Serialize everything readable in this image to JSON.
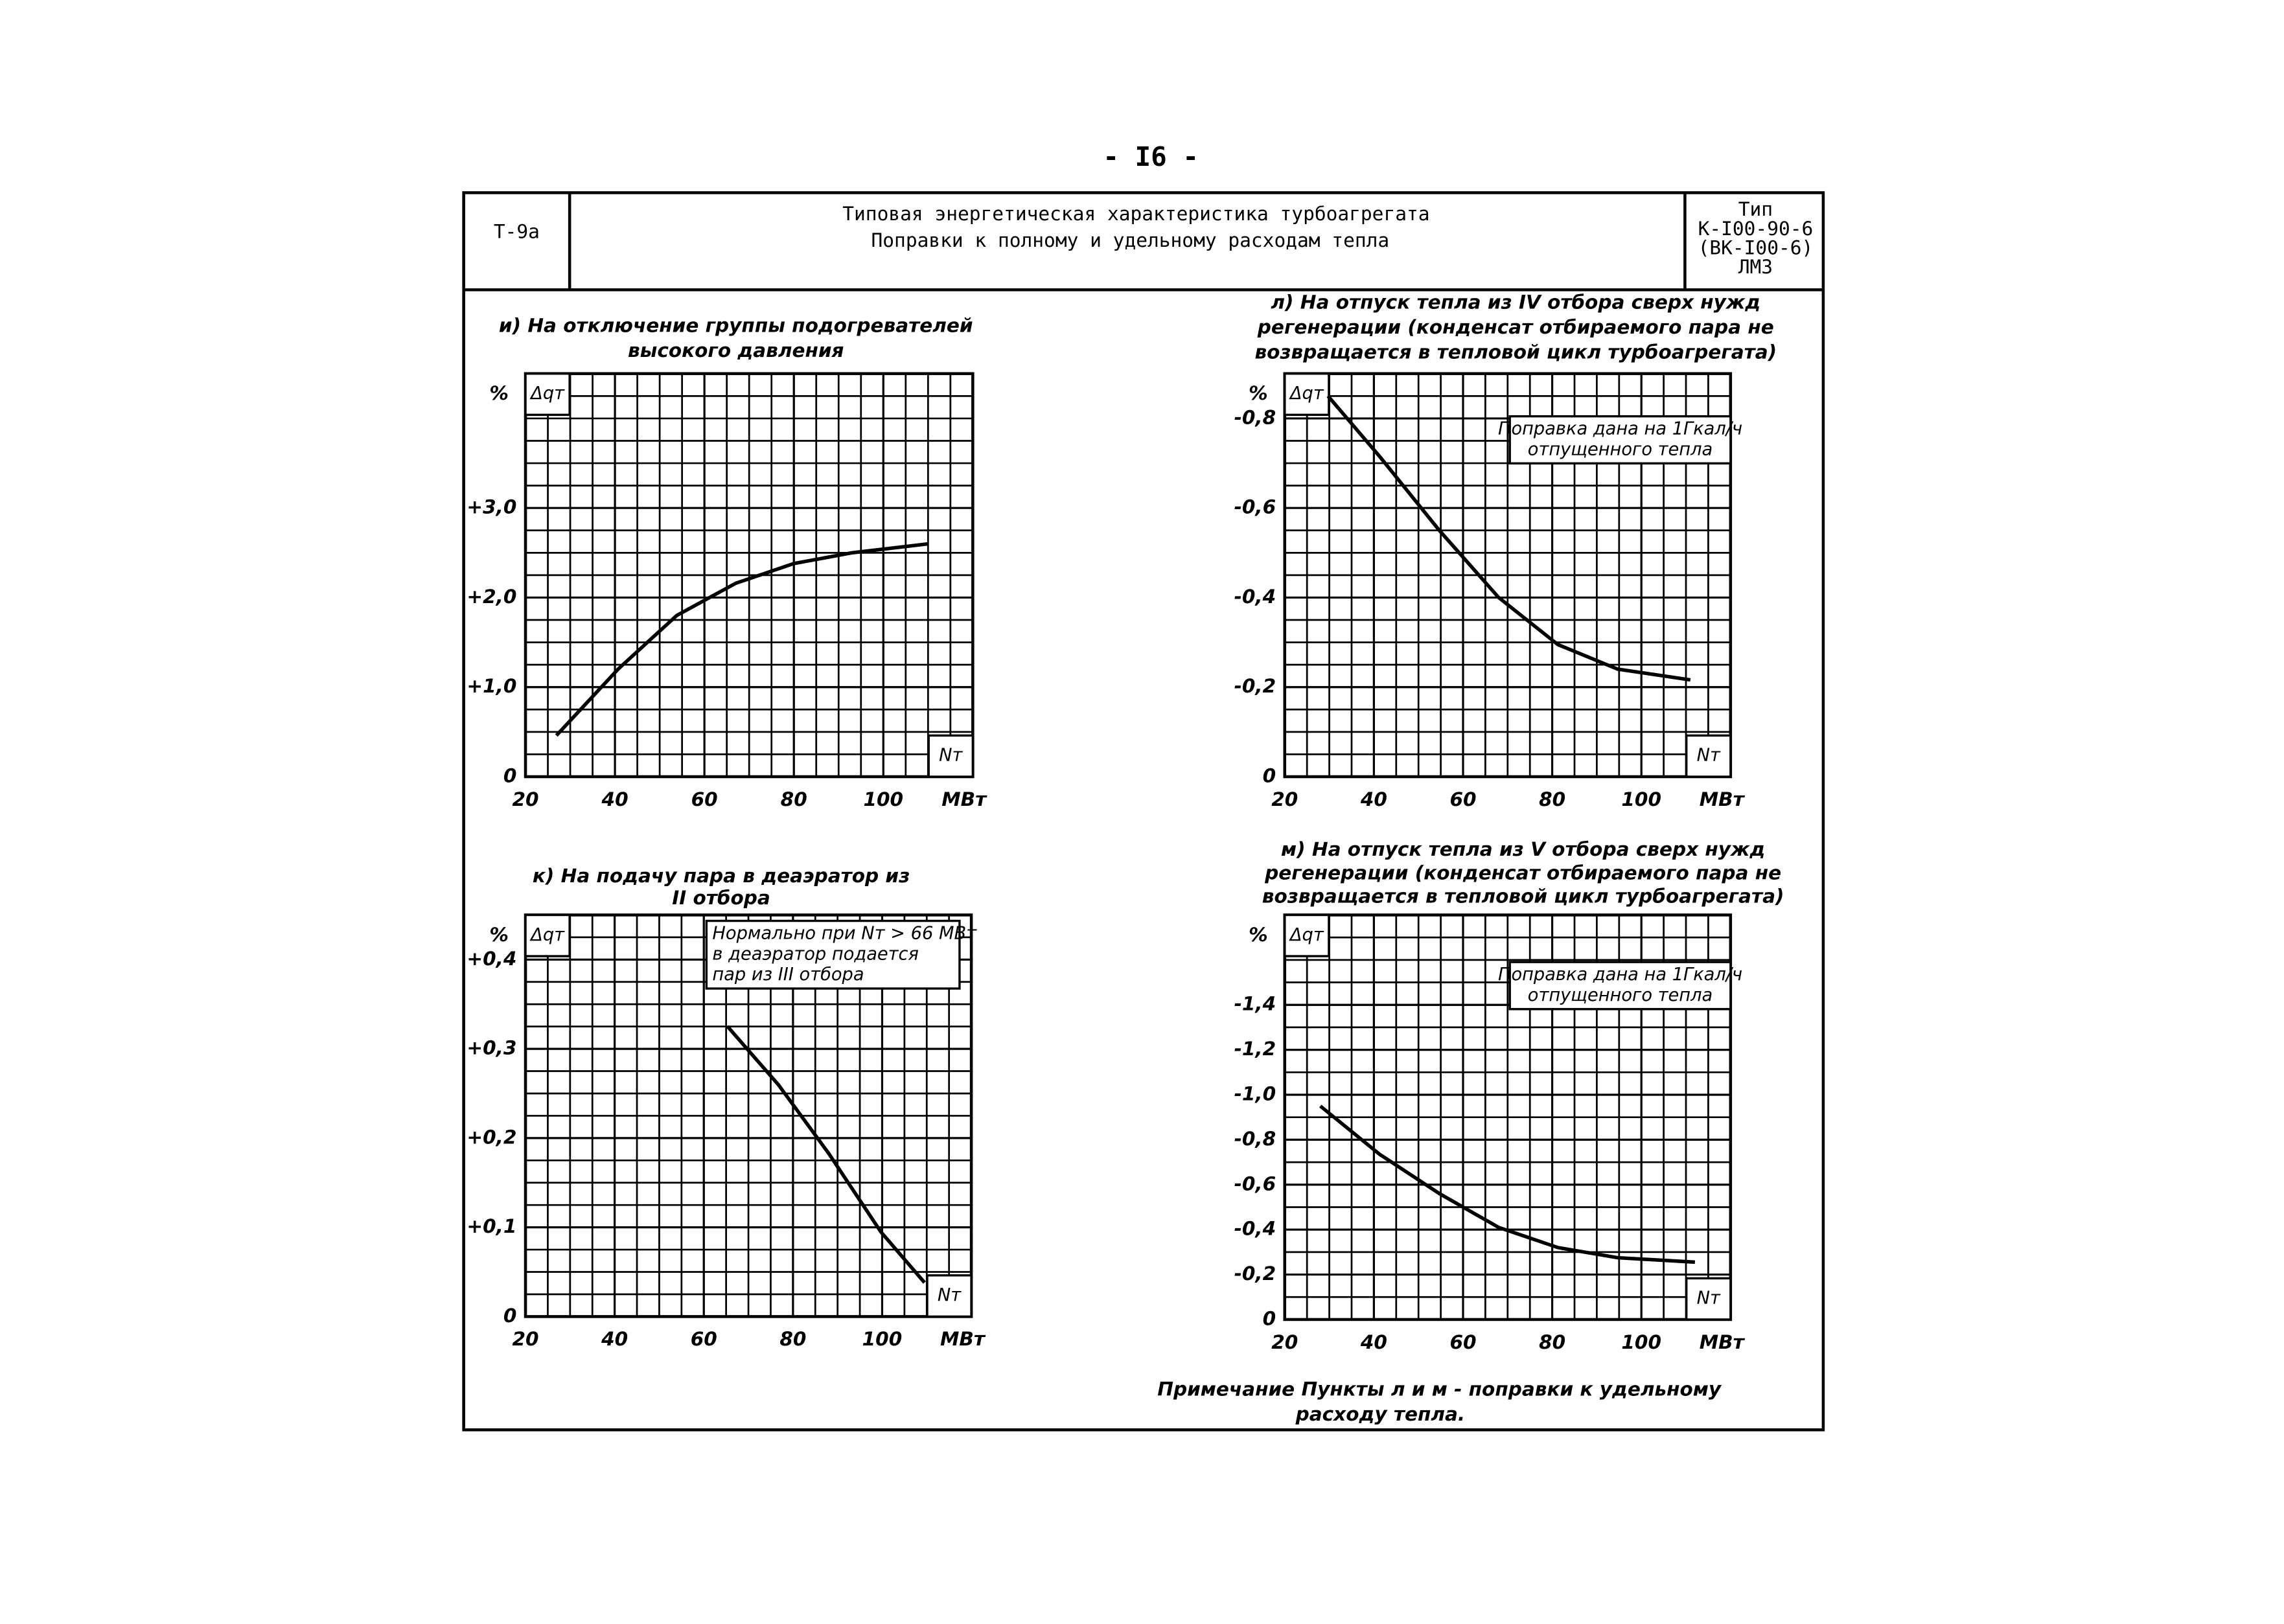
{
  "header": {
    "page_number": "- I6 -",
    "code": "Т-9а",
    "title": "Типовая энергетическая характеристика турбоагрегата",
    "subtitle": "Поправки к полному и удельному расходам тепла",
    "type_lines": [
      "Тип",
      "К-I00-90-6",
      "(ВК-I00-6)",
      "ЛМЗ"
    ]
  },
  "chart_data": [
    {
      "type": "line",
      "title": [
        "и) На отключение группы подогревателей",
        "высокого давления"
      ],
      "y_label": "%",
      "y_symbol": "Δqт",
      "x_symbol": "Nт",
      "x_unit": "МВт",
      "color": "#000000",
      "grid": true,
      "x": [
        26.9,
        40.7,
        53.8,
        67,
        80,
        93,
        110
      ],
      "values": [
        0.46,
        1.2,
        1.8,
        2.16,
        2.38,
        2.5,
        2.6
      ],
      "xlim": [
        20,
        120
      ],
      "xticks": [
        20,
        40,
        60,
        80,
        100
      ],
      "ylim": [
        0,
        4.5
      ],
      "yticks": [
        0,
        {
          "value": 1,
          "label": "+1,0"
        },
        {
          "value": 2,
          "label": "+2,0"
        },
        {
          "value": 3,
          "label": "+3,0"
        }
      ]
    },
    {
      "type": "line",
      "title": [
        "к) На подачу пара в деаэратор из",
        "II отбора"
      ],
      "y_label": "%",
      "y_symbol": "Δqт",
      "x_symbol": "Nт",
      "x_unit": "МВт",
      "color": "#000000",
      "grid": true,
      "annotation": [
        "Нормально при Nт > 66 МВт",
        "в деаэратор подается",
        "пар из III отбора"
      ],
      "x": [
        65.3,
        76.7,
        88,
        99.7,
        109.5
      ],
      "values": [
        0.325,
        0.26,
        0.183,
        0.095,
        0.038
      ],
      "xlim": [
        20,
        120
      ],
      "xticks": [
        20,
        40,
        60,
        80,
        100
      ],
      "ylim": [
        0,
        0.45
      ],
      "yticks": [
        0,
        {
          "value": 0.1,
          "label": "+0,1"
        },
        {
          "value": 0.2,
          "label": "+0,2"
        },
        {
          "value": 0.3,
          "label": "+0,3"
        },
        {
          "value": 0.4,
          "label": "+0,4"
        }
      ]
    },
    {
      "type": "line",
      "title": [
        "л) На отпуск тепла из IV отбора сверх нужд",
        "регенерации (конденсат отбираемого пара не",
        "возвращается в тепловой цикл турбоагрегата)"
      ],
      "y_label": "%",
      "y_symbol": "Δqт",
      "x_symbol": "Nт",
      "x_unit": "МВт",
      "color": "#000000",
      "grid": true,
      "annotation": [
        "Поправка дана на 1Гкал/ч",
        "отпущенного тепла"
      ],
      "x": [
        29.7,
        41.3,
        54.7,
        68,
        81.3,
        94.7,
        111
      ],
      "values": [
        -0.85,
        -0.715,
        -0.55,
        -0.4,
        -0.295,
        -0.24,
        -0.216
      ],
      "xlim": [
        20,
        120
      ],
      "xticks": [
        20,
        40,
        60,
        80,
        100
      ],
      "ylim": [
        0,
        -0.9
      ],
      "yticks": [
        0,
        {
          "value": -0.2,
          "label": "-0,2"
        },
        {
          "value": -0.4,
          "label": "-0,4"
        },
        {
          "value": -0.6,
          "label": "-0,6"
        },
        {
          "value": -0.8,
          "label": "-0,8"
        }
      ]
    },
    {
      "type": "line",
      "title": [
        "м) На отпуск тепла из V отбора сверх нужд",
        "регенерации (конденсат отбираемого пара не",
        "возвращается в тепловой цикл турбоагрегата)"
      ],
      "y_label": "%",
      "y_symbol": "Δqт",
      "x_symbol": "Nт",
      "x_unit": "МВт",
      "color": "#000000",
      "grid": true,
      "annotation": [
        "Поправка дана на 1Гкал/ч",
        "отпущенного тепла"
      ],
      "x": [
        28,
        41.3,
        54.7,
        68,
        81.3,
        94.7,
        112
      ],
      "values": [
        -0.95,
        -0.735,
        -0.56,
        -0.41,
        -0.32,
        -0.275,
        -0.255
      ],
      "xlim": [
        20,
        120
      ],
      "xticks": [
        20,
        40,
        60,
        80,
        100
      ],
      "ylim": [
        0,
        -1.8
      ],
      "yticks": [
        0,
        {
          "value": -0.2,
          "label": "-0,2"
        },
        {
          "value": -0.4,
          "label": "-0,4"
        },
        {
          "value": -0.6,
          "label": "-0,6"
        },
        {
          "value": -0.8,
          "label": "-0,8"
        },
        {
          "value": -1,
          "label": "-1,0"
        },
        {
          "value": -1.2,
          "label": "-1,2"
        },
        {
          "value": -1.4,
          "label": "-1,4"
        }
      ]
    }
  ],
  "note": [
    "Примечание Пункты л и м - поправки к удельному",
    "расходу тепла."
  ]
}
